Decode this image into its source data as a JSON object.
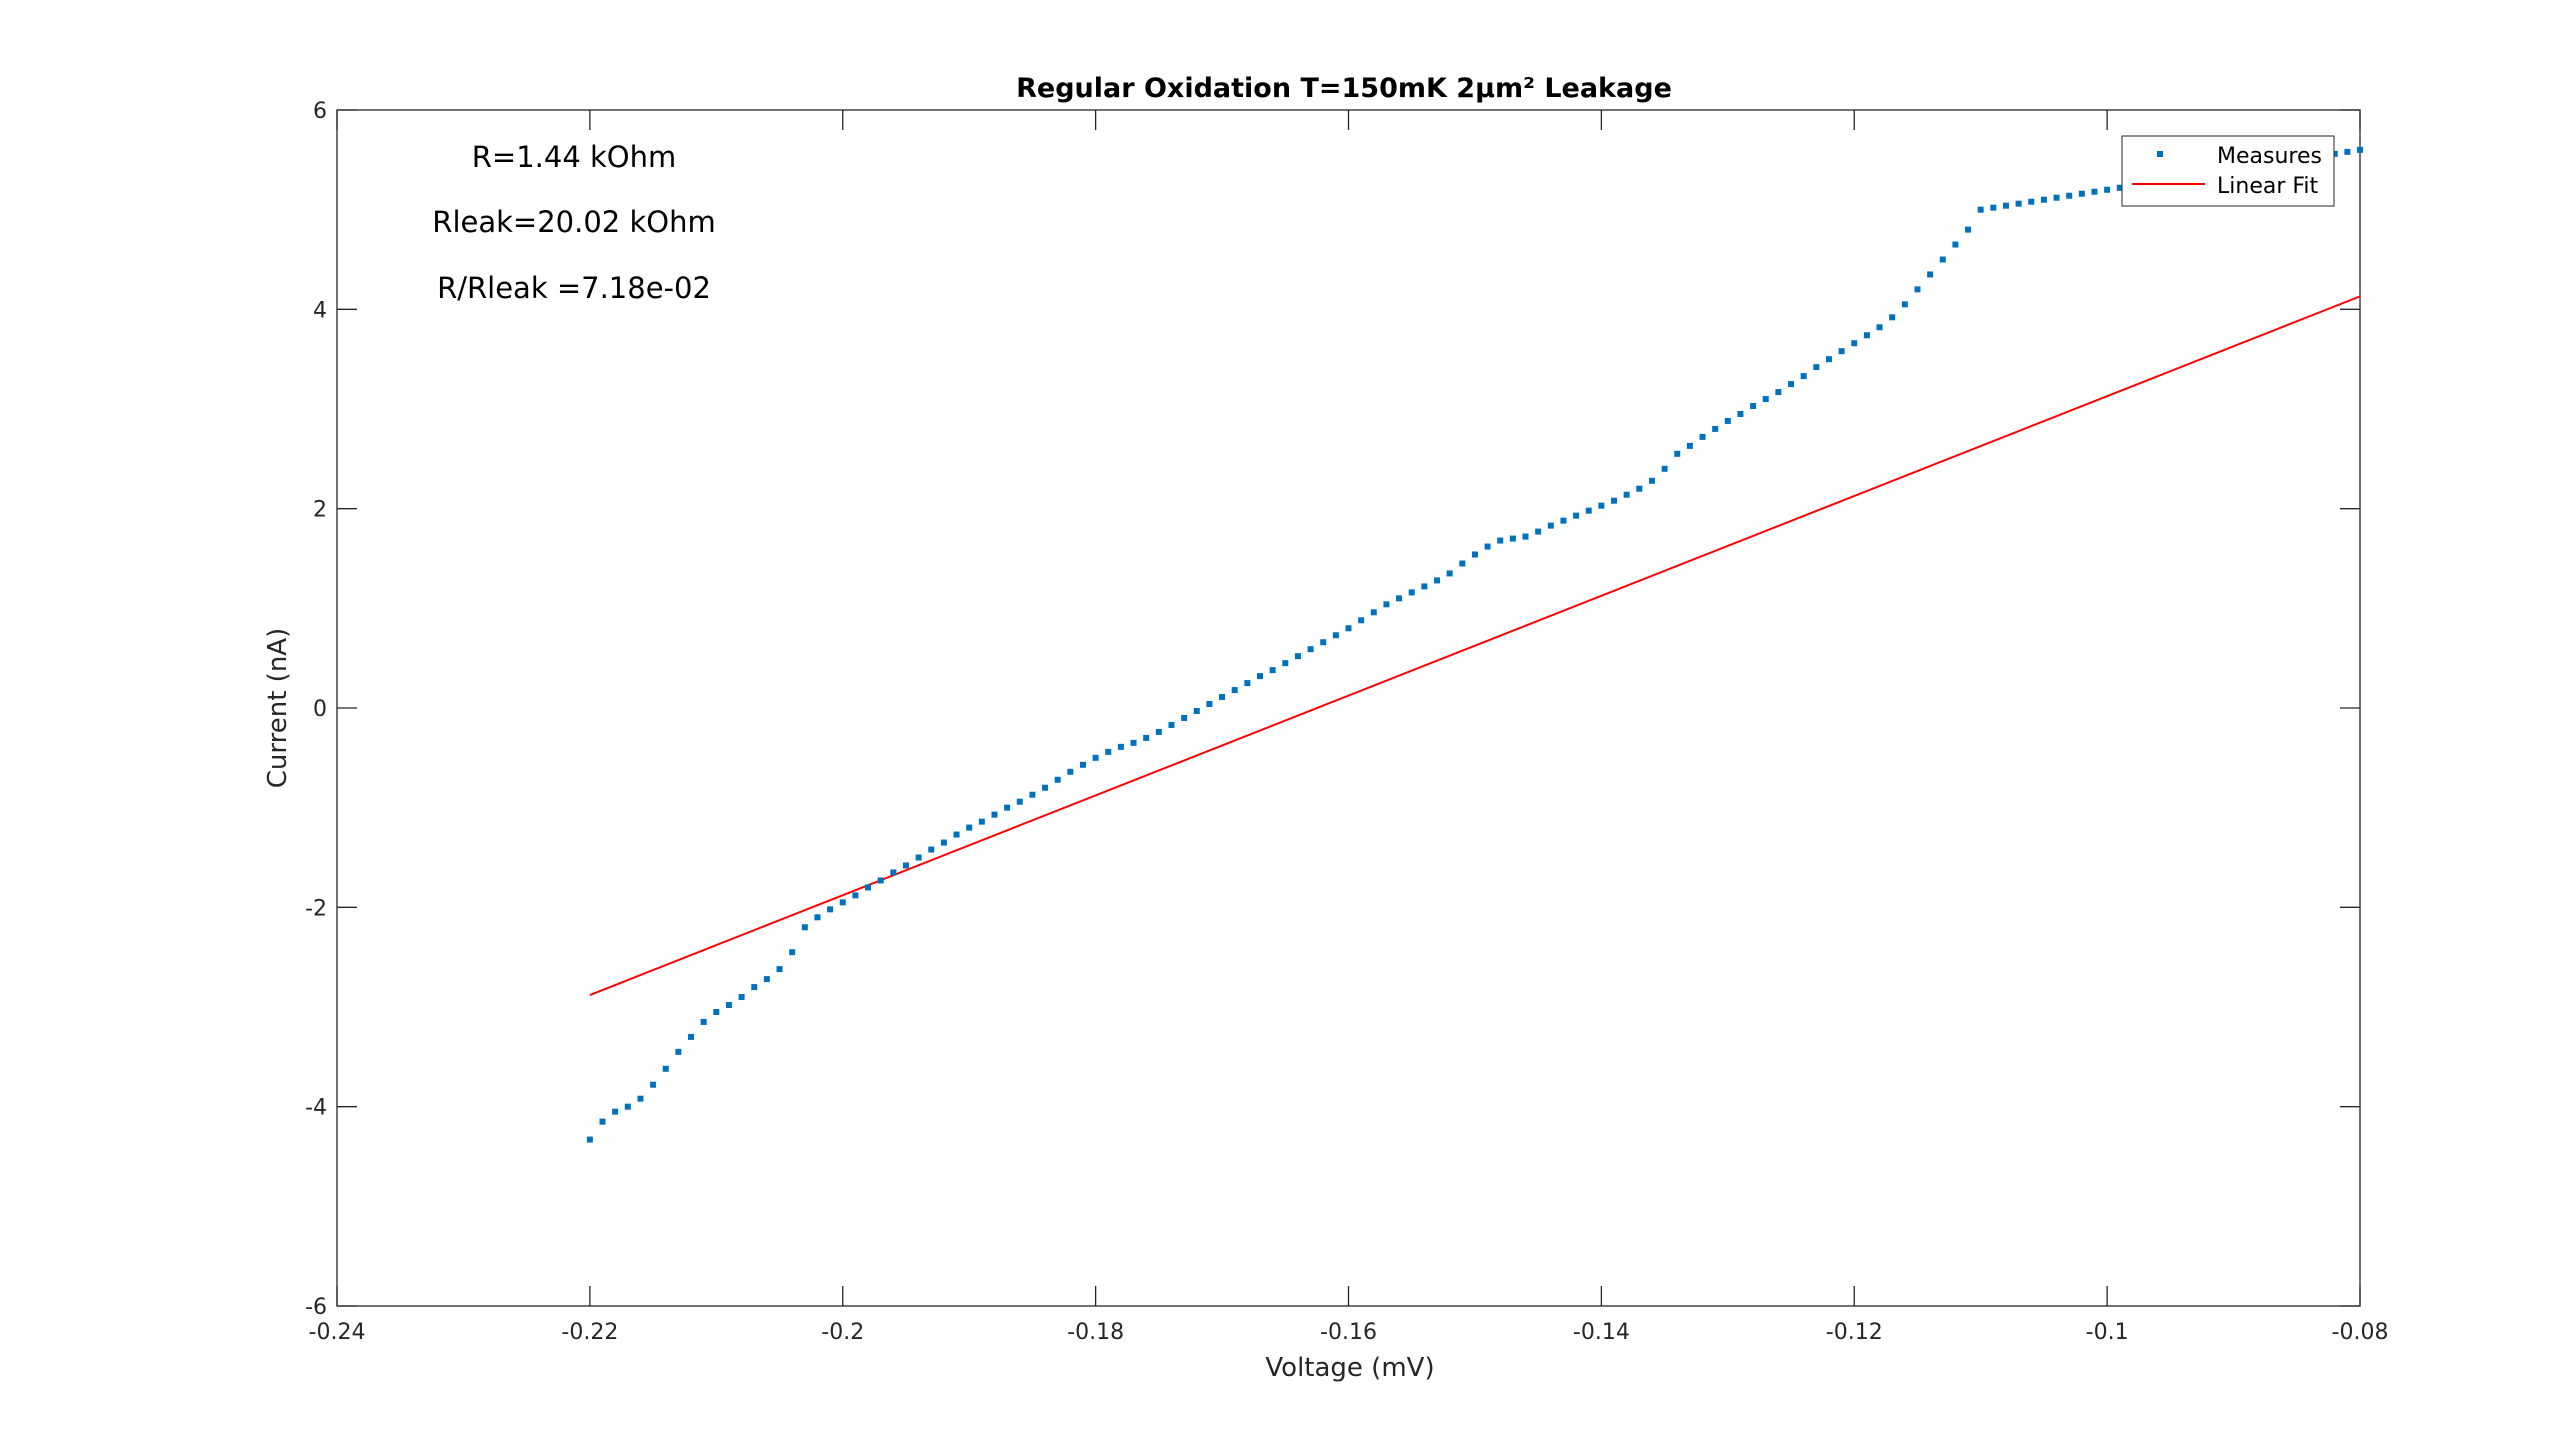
{
  "chart_data": {
    "type": "scatter",
    "title": "Regular Oxidation T=150mK 2µm² Leakage",
    "xlabel": "Voltage (mV)",
    "ylabel": "Current (nA)",
    "xlim": [
      -0.24,
      -0.08
    ],
    "ylim": [
      -6,
      6
    ],
    "xticks": [
      -0.24,
      -0.22,
      -0.2,
      -0.18,
      -0.16,
      -0.14,
      -0.12,
      -0.1,
      -0.08
    ],
    "xtick_labels": [
      "-0.24",
      "-0.22",
      "-0.2",
      "-0.18",
      "-0.16",
      "-0.14",
      "-0.12",
      "-0.1",
      "-0.08"
    ],
    "yticks": [
      -6,
      -4,
      -2,
      0,
      2,
      4,
      6
    ],
    "ytick_labels": [
      "-6",
      "-4",
      "-2",
      "0",
      "2",
      "4",
      "6"
    ],
    "grid": false,
    "legend_position": "top-right",
    "annotations": [
      "R=1.44 kOhm",
      "Rleak=20.02 kOhm",
      "R/Rleak =7.18e-02"
    ],
    "series": [
      {
        "name": "Measures",
        "kind": "points",
        "color": "#0072BD",
        "x": [
          -0.22,
          -0.219,
          -0.218,
          -0.217,
          -0.216,
          -0.215,
          -0.214,
          -0.213,
          -0.212,
          -0.211,
          -0.21,
          -0.209,
          -0.208,
          -0.207,
          -0.206,
          -0.205,
          -0.204,
          -0.203,
          -0.202,
          -0.201,
          -0.2,
          -0.199,
          -0.198,
          -0.197,
          -0.196,
          -0.195,
          -0.194,
          -0.193,
          -0.192,
          -0.191,
          -0.19,
          -0.189,
          -0.188,
          -0.187,
          -0.186,
          -0.185,
          -0.184,
          -0.183,
          -0.182,
          -0.181,
          -0.18,
          -0.179,
          -0.178,
          -0.177,
          -0.176,
          -0.175,
          -0.174,
          -0.173,
          -0.172,
          -0.171,
          -0.17,
          -0.169,
          -0.168,
          -0.167,
          -0.166,
          -0.165,
          -0.164,
          -0.163,
          -0.162,
          -0.161,
          -0.16,
          -0.159,
          -0.158,
          -0.157,
          -0.156,
          -0.155,
          -0.154,
          -0.153,
          -0.152,
          -0.151,
          -0.15,
          -0.149,
          -0.148,
          -0.147,
          -0.146,
          -0.145,
          -0.144,
          -0.143,
          -0.142,
          -0.141,
          -0.14,
          -0.139,
          -0.138,
          -0.137,
          -0.136,
          -0.135,
          -0.134,
          -0.133,
          -0.132,
          -0.131,
          -0.13,
          -0.129,
          -0.128,
          -0.127,
          -0.126,
          -0.125,
          -0.124,
          -0.123,
          -0.122,
          -0.121,
          -0.12,
          -0.119,
          -0.118,
          -0.117,
          -0.116,
          -0.115,
          -0.114,
          -0.113,
          -0.112,
          -0.111,
          -0.11,
          -0.109,
          -0.108,
          -0.107,
          -0.106,
          -0.105,
          -0.104,
          -0.103,
          -0.102,
          -0.101,
          -0.1,
          -0.099,
          -0.098,
          -0.097,
          -0.096,
          -0.095,
          -0.094,
          -0.093,
          -0.092,
          -0.091,
          -0.09,
          -0.089,
          -0.088,
          -0.087,
          -0.086,
          -0.085,
          -0.084,
          -0.083,
          -0.082,
          -0.081,
          -0.08
        ],
        "y": [
          -4.33,
          -4.15,
          -4.05,
          -4.0,
          -3.92,
          -3.78,
          -3.62,
          -3.45,
          -3.3,
          -3.15,
          -3.05,
          -2.98,
          -2.9,
          -2.8,
          -2.72,
          -2.62,
          -2.45,
          -2.2,
          -2.1,
          -2.02,
          -1.95,
          -1.88,
          -1.8,
          -1.73,
          -1.65,
          -1.58,
          -1.5,
          -1.42,
          -1.35,
          -1.27,
          -1.2,
          -1.14,
          -1.07,
          -1.0,
          -0.94,
          -0.87,
          -0.8,
          -0.72,
          -0.64,
          -0.57,
          -0.5,
          -0.44,
          -0.39,
          -0.35,
          -0.3,
          -0.24,
          -0.17,
          -0.1,
          -0.03,
          0.04,
          0.11,
          0.18,
          0.25,
          0.32,
          0.38,
          0.45,
          0.52,
          0.59,
          0.66,
          0.73,
          0.8,
          0.88,
          0.96,
          1.04,
          1.1,
          1.16,
          1.22,
          1.28,
          1.35,
          1.45,
          1.54,
          1.62,
          1.68,
          1.7,
          1.72,
          1.77,
          1.83,
          1.88,
          1.93,
          1.98,
          2.03,
          2.08,
          2.14,
          2.2,
          2.28,
          2.4,
          2.55,
          2.63,
          2.72,
          2.8,
          2.88,
          2.95,
          3.03,
          3.1,
          3.17,
          3.25,
          3.33,
          3.42,
          3.5,
          3.58,
          3.66,
          3.74,
          3.82,
          3.92,
          4.05,
          4.2,
          4.35,
          4.5,
          4.65,
          4.8,
          5.0,
          5.02,
          5.04,
          5.06,
          5.08,
          5.1,
          5.12,
          5.14,
          5.16,
          5.18,
          5.2,
          5.22,
          5.24,
          5.26,
          5.28,
          5.3,
          5.32,
          5.34,
          5.36,
          5.38,
          5.4,
          5.42,
          5.44,
          5.46,
          5.48,
          5.5,
          5.52,
          5.54,
          5.56,
          5.58,
          5.6
        ]
      },
      {
        "name": "Linear Fit",
        "kind": "line",
        "color": "#FF0000",
        "x": [
          -0.22,
          -0.08
        ],
        "y": [
          -2.88,
          4.13
        ]
      }
    ]
  }
}
